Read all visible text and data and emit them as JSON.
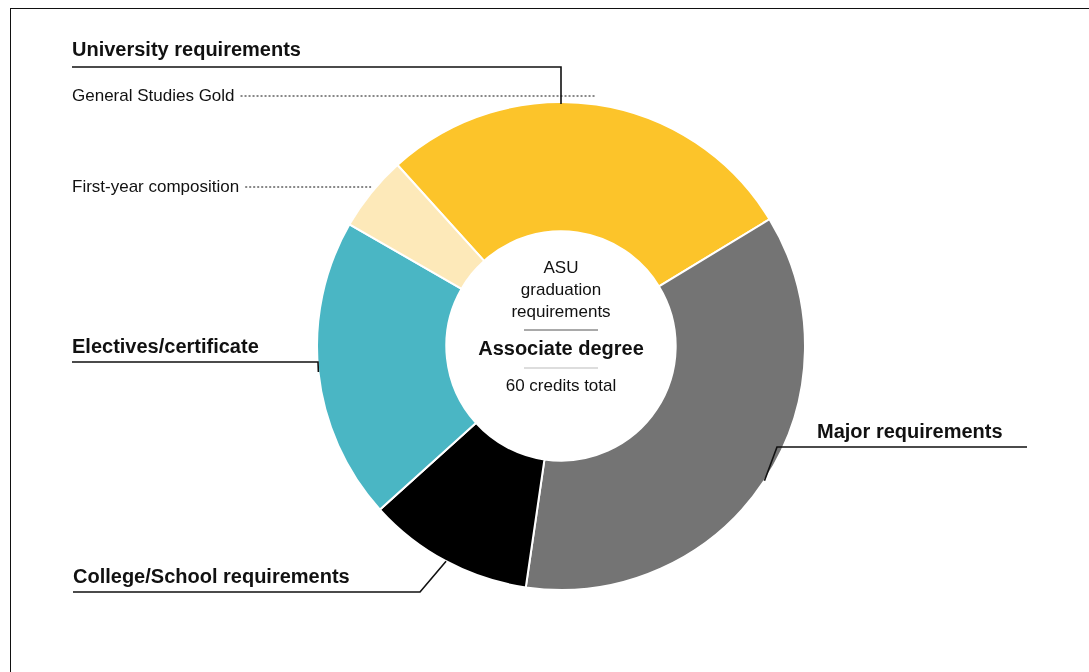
{
  "chart_data": {
    "type": "donut",
    "categories": [
      "General Studies Gold",
      "Major requirements",
      "College/School requirements",
      "Electives/certificate",
      "First-year composition"
    ],
    "values": [
      28,
      36,
      11,
      20,
      5
    ],
    "colors": [
      "#fcc42a",
      "#747474",
      "#000000",
      "#4ab6c4",
      "#fde9b9"
    ],
    "annotations": [
      "University requirements",
      "ASU graduation requirements",
      "Associate degree",
      "60 credits total"
    ],
    "legend": false
  }
}
